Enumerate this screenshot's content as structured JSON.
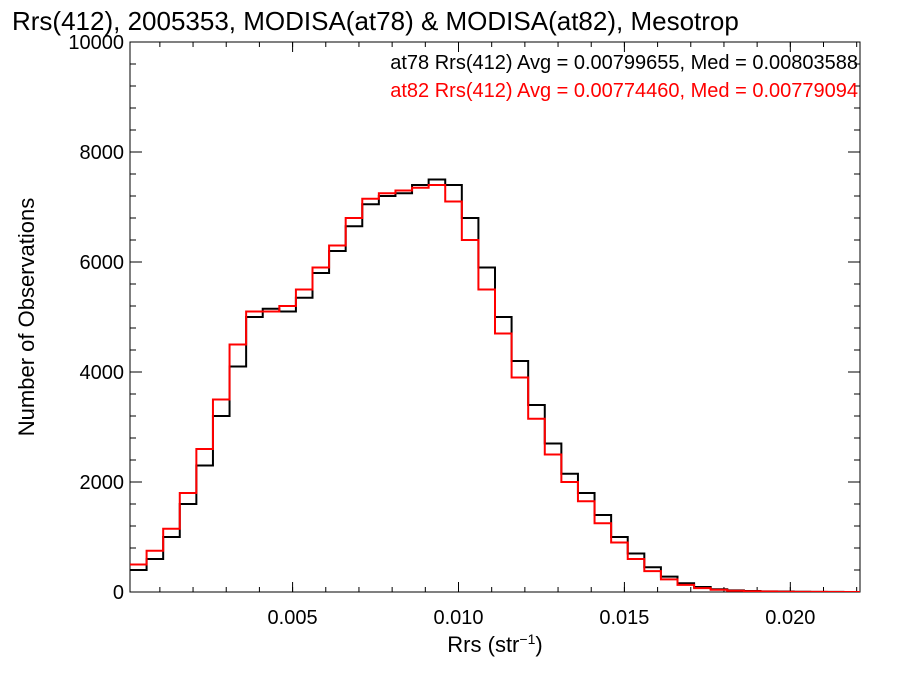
{
  "chart_data": {
    "type": "line",
    "title": "Rrs(412), 2005353, MODISA(at78) & MODISA(at82), Mesotrop",
    "xlabel_main": "Rrs (str",
    "xlabel_sup": "−1",
    "xlabel_end": ")",
    "ylabel": "Number of Observations",
    "xlim": [
      0.0001,
      0.0221
    ],
    "ylim": [
      0,
      10000
    ],
    "x_ticks": [
      0.005,
      0.01,
      0.015,
      0.02
    ],
    "x_tick_labels": [
      "0.005",
      "0.010",
      "0.015",
      "0.020"
    ],
    "y_ticks": [
      0,
      2000,
      4000,
      6000,
      8000,
      10000
    ],
    "y_tick_labels": [
      "0",
      "2000",
      "4000",
      "6000",
      "8000",
      "10000"
    ],
    "grid": false,
    "legend": "top-right",
    "x": [
      0.0001,
      0.0006,
      0.0011,
      0.0016,
      0.0021,
      0.0026,
      0.0031,
      0.0036,
      0.0041,
      0.0046,
      0.0051,
      0.0056,
      0.0061,
      0.0066,
      0.0071,
      0.0076,
      0.0081,
      0.0086,
      0.0091,
      0.0096,
      0.0101,
      0.0106,
      0.0111,
      0.0116,
      0.0121,
      0.0126,
      0.0131,
      0.0136,
      0.0141,
      0.0146,
      0.0151,
      0.0156,
      0.0161,
      0.0166,
      0.0171,
      0.0176,
      0.0181,
      0.0186,
      0.0191,
      0.0196,
      0.0201,
      0.0206,
      0.0211,
      0.0216,
      0.0221
    ],
    "series": [
      {
        "name": "at78",
        "color": "#000000",
        "values": [
          400,
          600,
          1000,
          1600,
          2300,
          3200,
          4100,
          5000,
          5150,
          5100,
          5350,
          5800,
          6200,
          6650,
          7050,
          7200,
          7250,
          7400,
          7500,
          7400,
          6800,
          5900,
          5000,
          4200,
          3400,
          2700,
          2150,
          1800,
          1400,
          1000,
          700,
          450,
          280,
          160,
          90,
          50,
          30,
          18,
          12,
          8,
          5,
          3,
          2,
          1,
          0
        ]
      },
      {
        "name": "at82",
        "color": "#ff0000",
        "values": [
          500,
          750,
          1150,
          1800,
          2600,
          3500,
          4500,
          5100,
          5100,
          5200,
          5500,
          5900,
          6300,
          6800,
          7150,
          7250,
          7300,
          7350,
          7400,
          7100,
          6400,
          5500,
          4700,
          3900,
          3150,
          2500,
          2000,
          1650,
          1250,
          900,
          600,
          380,
          230,
          130,
          70,
          40,
          22,
          13,
          8,
          5,
          3,
          2,
          1,
          1,
          0
        ]
      }
    ],
    "annotations": [
      {
        "text": "at78 Rrs(412) Avg = 0.00799655, Med = 0.00803588",
        "color": "#000000"
      },
      {
        "text": "at82 Rrs(412) Avg = 0.00774460, Med = 0.00779094",
        "color": "#ff0000"
      }
    ]
  }
}
